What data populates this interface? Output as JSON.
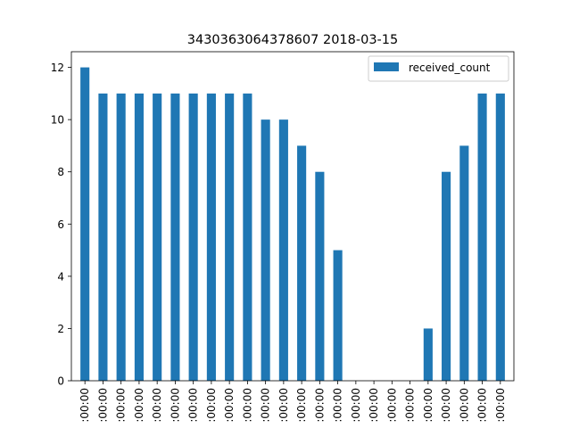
{
  "chart_data": {
    "type": "bar",
    "title": "3430363064378607 2018-03-15",
    "xlabel": "",
    "ylabel": "",
    "ylim": [
      0,
      12.6
    ],
    "yticks": [
      0,
      2,
      4,
      6,
      8,
      10,
      12
    ],
    "categories": [
      ":00:00",
      ":00:00",
      ":00:00",
      ":00:00",
      ":00:00",
      ":00:00",
      ":00:00",
      ":00:00",
      ":00:00",
      ":00:00",
      ":00:00",
      ":00:00",
      ":00:00",
      ":00:00",
      ":00:00",
      ":00:00",
      ":00:00",
      ":00:00",
      ":00:00",
      ":00:00",
      ":00:00",
      ":00:00",
      ":00:00",
      ":00:00"
    ],
    "series": [
      {
        "name": "received_count",
        "color": "#1f77b4",
        "values": [
          12,
          11,
          11,
          11,
          11,
          11,
          11,
          11,
          11,
          11,
          10,
          10,
          9,
          8,
          5,
          0,
          0,
          0,
          0,
          2,
          8,
          9,
          11,
          11
        ]
      }
    ],
    "legend_position": "top-right",
    "grid": false
  }
}
